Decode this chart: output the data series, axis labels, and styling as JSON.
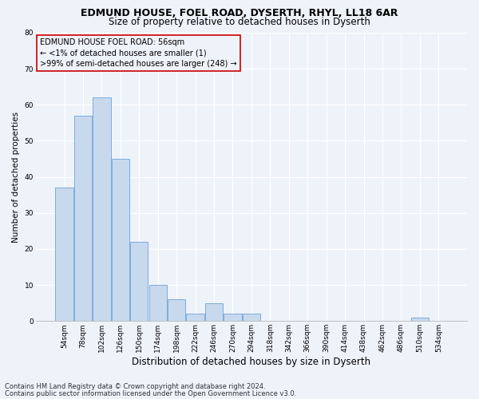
{
  "title1": "EDMUND HOUSE, FOEL ROAD, DYSERTH, RHYL, LL18 6AR",
  "title2": "Size of property relative to detached houses in Dyserth",
  "xlabel": "Distribution of detached houses by size in Dyserth",
  "ylabel": "Number of detached properties",
  "categories": [
    "54sqm",
    "78sqm",
    "102sqm",
    "126sqm",
    "150sqm",
    "174sqm",
    "198sqm",
    "222sqm",
    "246sqm",
    "270sqm",
    "294sqm",
    "318sqm",
    "342sqm",
    "366sqm",
    "390sqm",
    "414sqm",
    "438sqm",
    "462sqm",
    "486sqm",
    "510sqm",
    "534sqm"
  ],
  "values": [
    37,
    57,
    62,
    45,
    22,
    10,
    6,
    2,
    5,
    2,
    2,
    0,
    0,
    0,
    0,
    0,
    0,
    0,
    0,
    1,
    0
  ],
  "bar_color": "#c8d9ee",
  "bar_edge_color": "#7aaedb",
  "ylim": [
    0,
    80
  ],
  "yticks": [
    0,
    10,
    20,
    30,
    40,
    50,
    60,
    70,
    80
  ],
  "annotation_line1": "EDMUND HOUSE FOEL ROAD: 56sqm",
  "annotation_line2": "← <1% of detached houses are smaller (1)",
  "annotation_line3": ">99% of semi-detached houses are larger (248) →",
  "annotation_box_color": "#cc0000",
  "footer1": "Contains HM Land Registry data © Crown copyright and database right 2024.",
  "footer2": "Contains public sector information licensed under the Open Government Licence v3.0.",
  "background_color": "#eef2f9",
  "grid_color": "#d8e0ee",
  "title1_fontsize": 9,
  "title2_fontsize": 8.5,
  "xlabel_fontsize": 8.5,
  "ylabel_fontsize": 7.5,
  "tick_fontsize": 6.5,
  "annotation_fontsize": 7,
  "footer_fontsize": 6
}
